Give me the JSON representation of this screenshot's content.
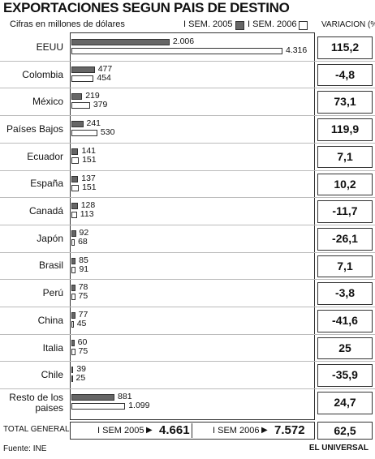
{
  "chart_data": {
    "type": "bar",
    "orientation": "horizontal",
    "title": "EXPORTACIONES SEGUN PAIS DE DESTINO",
    "subtitle": "Cifras en millones de dólares",
    "categories": [
      "EEUU",
      "Colombia",
      "México",
      "Países Bajos",
      "Ecuador",
      "España",
      "Canadá",
      "Japón",
      "Brasil",
      "Perú",
      "China",
      "Italia",
      "Chile",
      "Resto de los paises"
    ],
    "series": [
      {
        "name": "I SEM. 2005",
        "color": "#666666",
        "values": [
          2006,
          477,
          219,
          241,
          141,
          137,
          128,
          92,
          85,
          78,
          77,
          60,
          39,
          881
        ],
        "value_labels": [
          "2.006",
          "477",
          "219",
          "241",
          "141",
          "137",
          "128",
          "92",
          "85",
          "78",
          "77",
          "60",
          "39",
          "881"
        ]
      },
      {
        "name": "I SEM. 2006",
        "color": "#ffffff",
        "values": [
          4316,
          454,
          379,
          530,
          151,
          151,
          113,
          68,
          91,
          75,
          45,
          75,
          25,
          1099
        ],
        "value_labels": [
          "4.316",
          "454",
          "379",
          "530",
          "151",
          "151",
          "113",
          "68",
          "91",
          "75",
          "45",
          "75",
          "25",
          "1.099"
        ]
      }
    ],
    "xlim": [
      0,
      4400
    ],
    "variation_header": "VARIACION (%)",
    "variation": [
      "115,2",
      "-4,8",
      "73,1",
      "119,9",
      "7,1",
      "10,2",
      "-11,7",
      "-26,1",
      "7,1",
      "-3,8",
      "-41,6",
      "25",
      "-35,9",
      "24,7"
    ],
    "total": {
      "label": "TOTAL GENERAL",
      "items": [
        {
          "label": "I SEM 2005",
          "value": "4.661"
        },
        {
          "label": "I SEM 2006",
          "value": "7.572"
        }
      ],
      "variation": "62,5"
    },
    "source": "Fuente: INE",
    "brand": "EL UNIVERSAL"
  }
}
